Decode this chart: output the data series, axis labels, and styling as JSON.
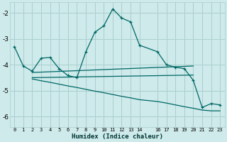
{
  "xlabel": "Humidex (Indice chaleur)",
  "background_color": "#ceeaea",
  "grid_color": "#aacfcf",
  "line_color": "#006666",
  "xlim": [
    -0.5,
    23.5
  ],
  "ylim": [
    -6.4,
    -1.6
  ],
  "yticks": [
    -6,
    -5,
    -4,
    -3,
    -2
  ],
  "xticks": [
    0,
    1,
    2,
    3,
    4,
    5,
    6,
    7,
    8,
    9,
    10,
    11,
    12,
    13,
    14,
    16,
    17,
    18,
    19,
    20,
    21,
    22,
    23
  ],
  "xtick_labels": [
    "0",
    "1",
    "2",
    "3",
    "4",
    "5",
    "6",
    "7",
    "8",
    "9",
    "10",
    "11",
    "12",
    "13",
    "14",
    "16",
    "17",
    "18",
    "19",
    "20",
    "21",
    "22",
    "23"
  ],
  "line1_x": [
    0,
    1,
    2,
    3,
    4,
    5,
    6,
    7,
    8,
    9,
    10,
    11,
    12,
    13,
    14,
    16,
    17,
    18,
    19,
    20,
    21,
    22,
    23
  ],
  "line1_y": [
    -3.3,
    -4.05,
    -4.25,
    -3.75,
    -3.72,
    -4.15,
    -4.42,
    -4.5,
    -3.5,
    -2.75,
    -2.5,
    -1.85,
    -2.2,
    -2.35,
    -3.25,
    -3.5,
    -4.0,
    -4.1,
    -4.15,
    -4.6,
    -5.65,
    -5.5,
    -5.55
  ],
  "line2_x": [
    2,
    20
  ],
  "line2_y": [
    -4.3,
    -4.05
  ],
  "line3_x": [
    2,
    20
  ],
  "line3_y": [
    -4.5,
    -4.4
  ],
  "line4_x": [
    2,
    3,
    4,
    5,
    6,
    7,
    8,
    9,
    10,
    11,
    12,
    13,
    14,
    16,
    17,
    18,
    19,
    20,
    21,
    22,
    23
  ],
  "line4_y": [
    -4.55,
    -4.62,
    -4.68,
    -4.75,
    -4.82,
    -4.88,
    -4.95,
    -5.02,
    -5.08,
    -5.15,
    -5.22,
    -5.28,
    -5.35,
    -5.42,
    -5.48,
    -5.55,
    -5.62,
    -5.68,
    -5.75,
    -5.78,
    -5.78
  ]
}
